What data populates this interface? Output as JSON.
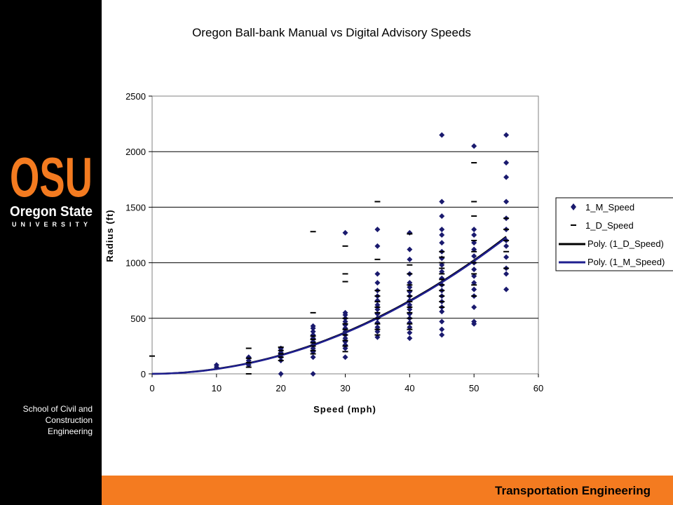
{
  "sidebar": {
    "logo_text": "OSU",
    "logo_sub": "Oregon State",
    "logo_sub2": "UNIVERSITY",
    "department": "School of Civil and Construction Engineering"
  },
  "footer": {
    "label": "Transportation Engineering"
  },
  "colors": {
    "accent": "#f47b20",
    "sidebar": "#000000",
    "manual": "#1a1a6e",
    "digital": "#000000",
    "manual_fit": "#1f1f8f"
  },
  "chart_data": {
    "type": "scatter",
    "title": "Oregon Ball-bank Manual vs Digital Advisory Speeds",
    "xlabel": "Speed (mph)",
    "ylabel": "Radius (ft)",
    "xlim": [
      0,
      60
    ],
    "ylim": [
      0,
      2500
    ],
    "xticks": [
      "0",
      "10",
      "20",
      "30",
      "40",
      "50",
      "60"
    ],
    "yticks": [
      "0",
      "500",
      "1000",
      "1500",
      "2000",
      "2500"
    ],
    "grid": "horizontal",
    "legend_position": "right",
    "legend": [
      "1_M_Speed",
      "1_D_Speed",
      "Poly. (1_D_Speed)",
      "Poly. (1_M_Speed)"
    ],
    "series": [
      {
        "name": "1_M_Speed",
        "marker": "diamond",
        "points": [
          [
            10,
            60
          ],
          [
            10,
            80
          ],
          [
            15,
            80
          ],
          [
            15,
            100
          ],
          [
            15,
            120
          ],
          [
            15,
            150
          ],
          [
            20,
            0
          ],
          [
            20,
            120
          ],
          [
            20,
            150
          ],
          [
            20,
            170
          ],
          [
            20,
            190
          ],
          [
            20,
            210
          ],
          [
            20,
            230
          ],
          [
            25,
            0
          ],
          [
            25,
            150
          ],
          [
            25,
            200
          ],
          [
            25,
            230
          ],
          [
            25,
            260
          ],
          [
            25,
            290
          ],
          [
            25,
            320
          ],
          [
            25,
            350
          ],
          [
            25,
            380
          ],
          [
            25,
            410
          ],
          [
            25,
            430
          ],
          [
            30,
            150
          ],
          [
            30,
            230
          ],
          [
            30,
            260
          ],
          [
            30,
            290
          ],
          [
            30,
            320
          ],
          [
            30,
            350
          ],
          [
            30,
            380
          ],
          [
            30,
            410
          ],
          [
            30,
            440
          ],
          [
            30,
            470
          ],
          [
            30,
            500
          ],
          [
            30,
            530
          ],
          [
            30,
            550
          ],
          [
            30,
            1270
          ],
          [
            35,
            330
          ],
          [
            35,
            380
          ],
          [
            35,
            420
          ],
          [
            35,
            460
          ],
          [
            35,
            500
          ],
          [
            35,
            540
          ],
          [
            35,
            580
          ],
          [
            35,
            620
          ],
          [
            35,
            660
          ],
          [
            35,
            700
          ],
          [
            35,
            750
          ],
          [
            35,
            820
          ],
          [
            35,
            900
          ],
          [
            35,
            1150
          ],
          [
            35,
            1300
          ],
          [
            40,
            320
          ],
          [
            40,
            370
          ],
          [
            40,
            420
          ],
          [
            40,
            460
          ],
          [
            40,
            500
          ],
          [
            40,
            540
          ],
          [
            40,
            580
          ],
          [
            40,
            620
          ],
          [
            40,
            660
          ],
          [
            40,
            700
          ],
          [
            40,
            740
          ],
          [
            40,
            780
          ],
          [
            40,
            820
          ],
          [
            40,
            900
          ],
          [
            40,
            1030
          ],
          [
            40,
            1120
          ],
          [
            40,
            1270
          ],
          [
            45,
            350
          ],
          [
            45,
            400
          ],
          [
            45,
            470
          ],
          [
            45,
            560
          ],
          [
            45,
            600
          ],
          [
            45,
            650
          ],
          [
            45,
            700
          ],
          [
            45,
            750
          ],
          [
            45,
            800
          ],
          [
            45,
            860
          ],
          [
            45,
            920
          ],
          [
            45,
            980
          ],
          [
            45,
            1040
          ],
          [
            45,
            1100
          ],
          [
            45,
            1180
          ],
          [
            45,
            1250
          ],
          [
            45,
            1300
          ],
          [
            45,
            1420
          ],
          [
            45,
            1550
          ],
          [
            45,
            2150
          ],
          [
            50,
            450
          ],
          [
            50,
            470
          ],
          [
            50,
            600
          ],
          [
            50,
            700
          ],
          [
            50,
            760
          ],
          [
            50,
            820
          ],
          [
            50,
            880
          ],
          [
            50,
            940
          ],
          [
            50,
            1000
          ],
          [
            50,
            1060
          ],
          [
            50,
            1120
          ],
          [
            50,
            1180
          ],
          [
            50,
            1250
          ],
          [
            50,
            1300
          ],
          [
            50,
            2050
          ],
          [
            55,
            760
          ],
          [
            55,
            900
          ],
          [
            55,
            950
          ],
          [
            55,
            1050
          ],
          [
            55,
            1150
          ],
          [
            55,
            1200
          ],
          [
            55,
            1300
          ],
          [
            55,
            1400
          ],
          [
            55,
            1550
          ],
          [
            55,
            1770
          ],
          [
            55,
            1900
          ],
          [
            55,
            2150
          ]
        ]
      },
      {
        "name": "1_D_Speed",
        "marker": "dash",
        "points": [
          [
            0,
            160
          ],
          [
            15,
            0
          ],
          [
            15,
            60
          ],
          [
            15,
            100
          ],
          [
            15,
            140
          ],
          [
            15,
            230
          ],
          [
            20,
            120
          ],
          [
            20,
            150
          ],
          [
            20,
            180
          ],
          [
            20,
            210
          ],
          [
            20,
            240
          ],
          [
            25,
            180
          ],
          [
            25,
            210
          ],
          [
            25,
            250
          ],
          [
            25,
            280
          ],
          [
            25,
            310
          ],
          [
            25,
            340
          ],
          [
            25,
            550
          ],
          [
            25,
            1280
          ],
          [
            30,
            200
          ],
          [
            30,
            250
          ],
          [
            30,
            300
          ],
          [
            30,
            350
          ],
          [
            30,
            400
          ],
          [
            30,
            450
          ],
          [
            30,
            500
          ],
          [
            30,
            830
          ],
          [
            30,
            900
          ],
          [
            30,
            1150
          ],
          [
            35,
            350
          ],
          [
            35,
            400
          ],
          [
            35,
            450
          ],
          [
            35,
            500
          ],
          [
            35,
            550
          ],
          [
            35,
            600
          ],
          [
            35,
            650
          ],
          [
            35,
            700
          ],
          [
            35,
            750
          ],
          [
            35,
            1030
          ],
          [
            35,
            1550
          ],
          [
            40,
            400
          ],
          [
            40,
            450
          ],
          [
            40,
            500
          ],
          [
            40,
            550
          ],
          [
            40,
            600
          ],
          [
            40,
            650
          ],
          [
            40,
            700
          ],
          [
            40,
            750
          ],
          [
            40,
            800
          ],
          [
            40,
            900
          ],
          [
            40,
            980
          ],
          [
            40,
            1260
          ],
          [
            45,
            600
          ],
          [
            45,
            650
          ],
          [
            45,
            700
          ],
          [
            45,
            750
          ],
          [
            45,
            800
          ],
          [
            45,
            850
          ],
          [
            45,
            900
          ],
          [
            45,
            950
          ],
          [
            45,
            1000
          ],
          [
            45,
            1050
          ],
          [
            45,
            1100
          ],
          [
            50,
            700
          ],
          [
            50,
            800
          ],
          [
            50,
            900
          ],
          [
            50,
            1000
          ],
          [
            50,
            1100
          ],
          [
            50,
            1200
          ],
          [
            50,
            1420
          ],
          [
            50,
            1550
          ],
          [
            50,
            1900
          ],
          [
            55,
            950
          ],
          [
            55,
            1100
          ],
          [
            55,
            1200
          ],
          [
            55,
            1300
          ],
          [
            55,
            1400
          ]
        ]
      },
      {
        "name": "Poly. (1_D_Speed)",
        "type": "line",
        "coef": [
          0.4,
          0.45,
          0
        ]
      },
      {
        "name": "Poly. (1_M_Speed)",
        "type": "line",
        "coef": [
          0.4,
          0.3,
          0
        ]
      }
    ]
  }
}
